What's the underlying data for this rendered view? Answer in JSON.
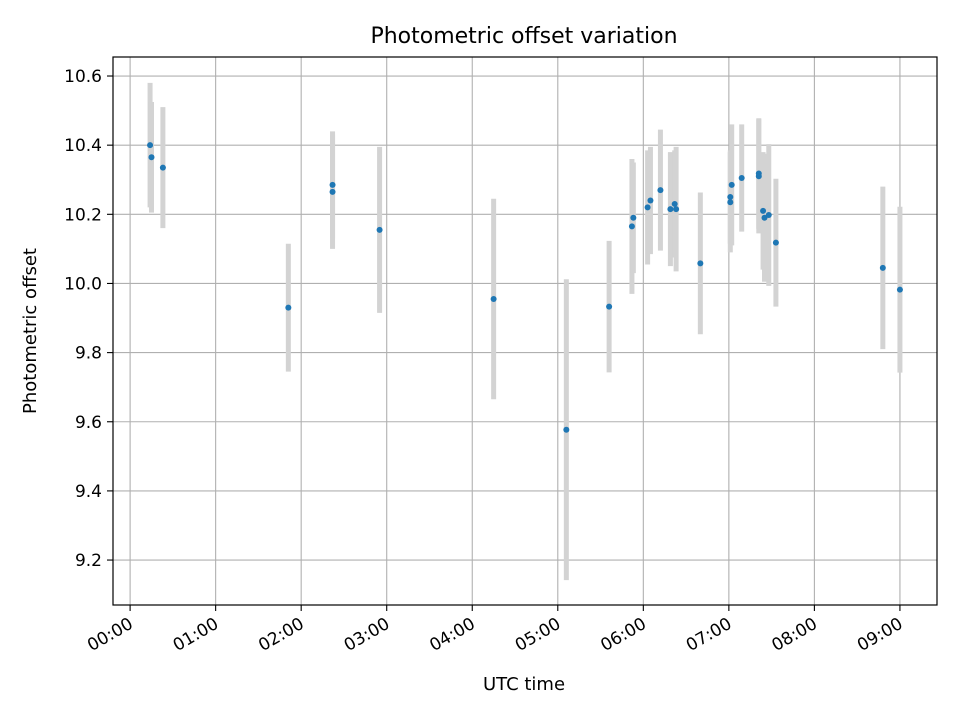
{
  "chart_data": {
    "type": "scatter",
    "title": "Photometric offset variation",
    "xlabel": "UTC time",
    "ylabel": "Photometric offset",
    "xlim": [
      "-00:12",
      "09:26"
    ],
    "ylim": [
      9.07,
      10.655
    ],
    "x_ticks": [
      "00:00",
      "01:00",
      "02:00",
      "03:00",
      "04:00",
      "05:00",
      "06:00",
      "07:00",
      "08:00",
      "09:00"
    ],
    "y_ticks": [
      "9.2",
      "9.4",
      "9.6",
      "9.8",
      "10.0",
      "10.2",
      "10.4",
      "10.6"
    ],
    "grid": true,
    "x_tick_rotation": "30°",
    "colors": {
      "marker": "#1f77b4",
      "errorbar": "#d3d3d3",
      "grid": "#b0b0b0",
      "axes": "#000000"
    },
    "series": [
      {
        "marker": "dot",
        "points": [
          {
            "x": "00:14",
            "y": 10.4,
            "yerr": 0.18
          },
          {
            "x": "00:15",
            "y": 10.365,
            "yerr": 0.16
          },
          {
            "x": "00:23",
            "y": 10.335,
            "yerr": 0.175
          },
          {
            "x": "01:51",
            "y": 9.93,
            "yerr": 0.185
          },
          {
            "x": "02:22",
            "y": 10.285,
            "yerr": 0.155
          },
          {
            "x": "02:22",
            "y": 10.265,
            "yerr": 0.165
          },
          {
            "x": "02:55",
            "y": 10.155,
            "yerr": 0.24
          },
          {
            "x": "04:15",
            "y": 9.955,
            "yerr": 0.29
          },
          {
            "x": "05:06",
            "y": 9.577,
            "yerr": 0.435
          },
          {
            "x": "05:36",
            "y": 9.933,
            "yerr": 0.19
          },
          {
            "x": "05:52",
            "y": 10.165,
            "yerr": 0.195
          },
          {
            "x": "05:53",
            "y": 10.19,
            "yerr": 0.16
          },
          {
            "x": "06:03",
            "y": 10.22,
            "yerr": 0.165
          },
          {
            "x": "06:05",
            "y": 10.24,
            "yerr": 0.155
          },
          {
            "x": "06:12",
            "y": 10.27,
            "yerr": 0.175
          },
          {
            "x": "06:19",
            "y": 10.215,
            "yerr": 0.165
          },
          {
            "x": "06:22",
            "y": 10.23,
            "yerr": 0.155
          },
          {
            "x": "06:23",
            "y": 10.215,
            "yerr": 0.18
          },
          {
            "x": "06:40",
            "y": 10.058,
            "yerr": 0.205
          },
          {
            "x": "07:01",
            "y": 10.235,
            "yerr": 0.145
          },
          {
            "x": "07:01",
            "y": 10.25,
            "yerr": 0.135
          },
          {
            "x": "07:02",
            "y": 10.285,
            "yerr": 0.175
          },
          {
            "x": "07:09",
            "y": 10.305,
            "yerr": 0.155
          },
          {
            "x": "07:21",
            "y": 10.31,
            "yerr": 0.165
          },
          {
            "x": "07:21",
            "y": 10.318,
            "yerr": 0.16
          },
          {
            "x": "07:24",
            "y": 10.21,
            "yerr": 0.17
          },
          {
            "x": "07:25",
            "y": 10.19,
            "yerr": 0.185
          },
          {
            "x": "07:28",
            "y": 10.198,
            "yerr": 0.205
          },
          {
            "x": "07:33",
            "y": 10.118,
            "yerr": 0.185
          },
          {
            "x": "08:48",
            "y": 10.045,
            "yerr": 0.235
          },
          {
            "x": "09:00",
            "y": 9.982,
            "yerr": 0.24
          }
        ]
      }
    ]
  }
}
